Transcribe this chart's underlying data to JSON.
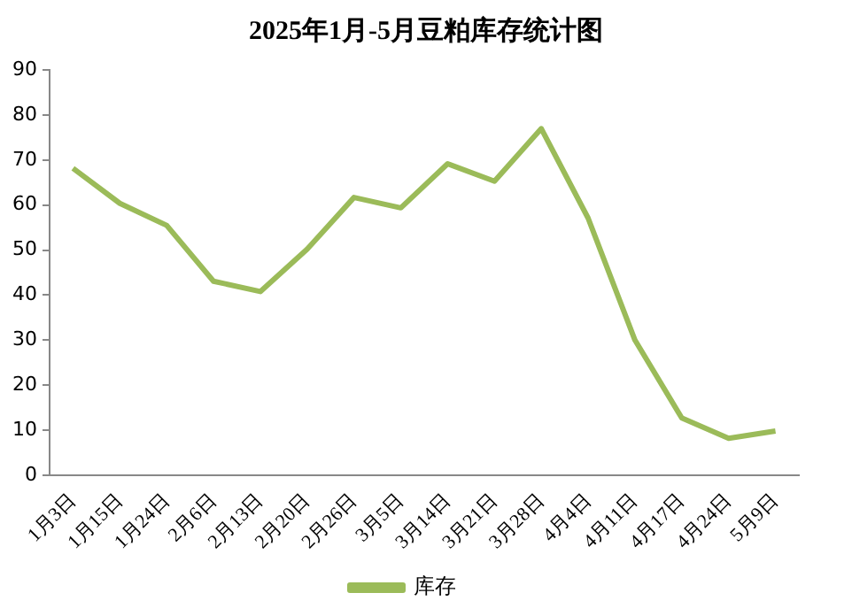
{
  "chart_data": {
    "type": "line",
    "title": "2025年1月-5月豆粕库存统计图",
    "categories": [
      "1月3日",
      "1月15日",
      "1月24日",
      "2月6日",
      "2月13日",
      "2月20日",
      "2月26日",
      "3月5日",
      "3月14日",
      "3月21日",
      "3月28日",
      "4月4日",
      "4月11日",
      "4月17日",
      "4月24日",
      "5月9日"
    ],
    "series": [
      {
        "name": "库存",
        "color": "#9bbb59",
        "values": [
          68.2,
          60.4,
          55.5,
          43.1,
          40.8,
          50.2,
          61.7,
          59.4,
          69.2,
          65.3,
          77,
          57.1,
          30,
          12.7,
          8.2,
          9.8
        ]
      }
    ],
    "ylim": [
      0,
      90
    ],
    "yticks": [
      0,
      10,
      20,
      30,
      40,
      50,
      60,
      70,
      80,
      90
    ],
    "grid": false,
    "legend": "bottom",
    "marker": "none",
    "line_style": "solid"
  }
}
